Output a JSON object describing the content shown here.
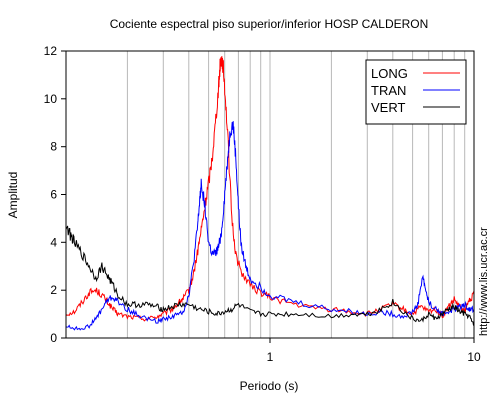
{
  "chart_data": {
    "type": "line",
    "title": "Cociente espectral piso superior/inferior  HOSP CALDERON",
    "xlabel": "Periodo (s)",
    "ylabel": "Amplitud",
    "x_scale": "log",
    "xlim": [
      0.1,
      10
    ],
    "ylim": [
      0,
      12
    ],
    "x_ticks": [
      {
        "value": 1,
        "label": "1"
      },
      {
        "value": 10,
        "label": "10"
      }
    ],
    "y_ticks": [
      0,
      2,
      4,
      6,
      8,
      10,
      12
    ],
    "grid": "vertical",
    "legend_position": "top-right",
    "side_note": "http://www.lis.ucr.ac.cr",
    "series": [
      {
        "name": "LONG",
        "color": "#ff0000",
        "x": [
          0.1,
          0.11,
          0.12,
          0.13,
          0.14,
          0.15,
          0.16,
          0.17,
          0.18,
          0.2,
          0.22,
          0.25,
          0.28,
          0.3,
          0.33,
          0.36,
          0.38,
          0.4,
          0.42,
          0.44,
          0.46,
          0.48,
          0.5,
          0.52,
          0.54,
          0.56,
          0.57,
          0.58,
          0.59,
          0.6,
          0.62,
          0.65,
          0.68,
          0.72,
          0.8,
          0.9,
          1.0,
          1.2,
          1.5,
          2.0,
          2.5,
          3.0,
          3.5,
          4.0,
          4.5,
          5.0,
          5.5,
          6.0,
          6.5,
          7.0,
          7.5,
          8.0,
          8.5,
          9.0,
          9.5,
          10.0
        ],
        "y": [
          1.0,
          1.1,
          1.5,
          1.9,
          2.0,
          1.8,
          1.5,
          1.2,
          1.0,
          0.9,
          0.85,
          0.8,
          0.9,
          1.0,
          1.2,
          1.5,
          1.7,
          2.0,
          2.6,
          3.5,
          4.5,
          5.5,
          6.5,
          7.5,
          9.0,
          10.5,
          11.5,
          11.7,
          11.3,
          10.5,
          8.5,
          5.0,
          3.5,
          2.8,
          2.2,
          1.9,
          1.7,
          1.5,
          1.3,
          1.2,
          1.1,
          1.0,
          1.2,
          1.4,
          1.2,
          1.0,
          1.3,
          1.1,
          1.2,
          0.9,
          1.3,
          1.6,
          1.3,
          1.1,
          1.6,
          1.8
        ]
      },
      {
        "name": "TRAN",
        "color": "#0000ff",
        "x": [
          0.1,
          0.11,
          0.12,
          0.13,
          0.14,
          0.15,
          0.16,
          0.17,
          0.18,
          0.2,
          0.22,
          0.25,
          0.28,
          0.3,
          0.33,
          0.36,
          0.38,
          0.4,
          0.42,
          0.44,
          0.45,
          0.46,
          0.48,
          0.5,
          0.52,
          0.54,
          0.56,
          0.58,
          0.6,
          0.62,
          0.64,
          0.66,
          0.68,
          0.7,
          0.72,
          0.76,
          0.8,
          0.9,
          1.0,
          1.2,
          1.5,
          2.0,
          2.5,
          3.0,
          3.5,
          4.0,
          4.5,
          5.0,
          5.3,
          5.6,
          5.8,
          6.0,
          6.5,
          7.0,
          7.5,
          8.0,
          8.5,
          9.0,
          9.5,
          10.0
        ],
        "y": [
          0.5,
          0.4,
          0.4,
          0.5,
          0.8,
          1.2,
          1.6,
          1.7,
          1.5,
          1.2,
          1.0,
          0.8,
          0.7,
          0.8,
          0.9,
          1.0,
          1.2,
          1.8,
          3.0,
          4.5,
          5.5,
          6.5,
          5.5,
          4.0,
          3.5,
          3.5,
          3.8,
          4.5,
          6.0,
          7.5,
          8.7,
          8.9,
          7.5,
          5.5,
          4.0,
          3.0,
          2.5,
          2.1,
          1.8,
          1.6,
          1.4,
          1.2,
          1.1,
          1.0,
          1.1,
          1.0,
          0.9,
          1.1,
          1.4,
          2.6,
          2.0,
          1.5,
          1.2,
          1.0,
          1.1,
          1.2,
          1.3,
          1.4,
          1.2,
          1.2
        ]
      },
      {
        "name": "VERT",
        "color": "#000000",
        "x": [
          0.1,
          0.105,
          0.11,
          0.12,
          0.13,
          0.14,
          0.15,
          0.16,
          0.17,
          0.18,
          0.2,
          0.22,
          0.25,
          0.28,
          0.3,
          0.33,
          0.36,
          0.4,
          0.45,
          0.5,
          0.55,
          0.6,
          0.65,
          0.7,
          0.8,
          0.9,
          1.0,
          1.2,
          1.5,
          2.0,
          2.5,
          3.0,
          3.5,
          4.0,
          4.5,
          5.0,
          5.5,
          6.0,
          6.5,
          7.0,
          7.5,
          8.0,
          8.5,
          9.0,
          9.5,
          10.0
        ],
        "y": [
          4.7,
          4.3,
          4.0,
          3.5,
          3.0,
          2.5,
          3.0,
          2.6,
          2.2,
          1.8,
          1.4,
          1.4,
          1.4,
          1.3,
          1.2,
          1.3,
          1.4,
          1.4,
          1.2,
          1.1,
          1.0,
          1.1,
          1.2,
          1.4,
          1.1,
          1.0,
          1.0,
          1.0,
          1.0,
          0.9,
          1.0,
          1.0,
          1.2,
          1.5,
          1.1,
          0.8,
          0.7,
          1.0,
          0.8,
          1.0,
          1.2,
          1.3,
          1.1,
          1.0,
          0.9,
          0.5
        ]
      }
    ]
  }
}
